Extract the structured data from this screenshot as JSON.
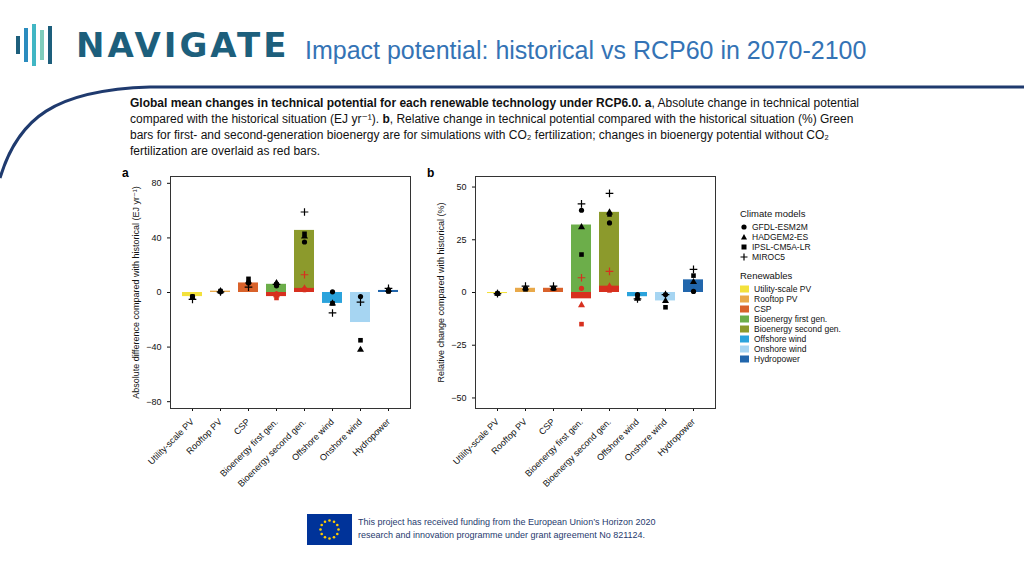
{
  "logo": "NAVIGATE",
  "title": "Impact potential: historical vs RCP60 in 2070-2100",
  "caption": [
    {
      "text": "Global mean changes in technical potential for each renewable technology under RCP6.0. ",
      "bold": true
    },
    {
      "text": "a",
      "bold": true
    },
    {
      "text": ", Absolute change in technical potential compared with the historical situation (EJ yr⁻¹). ",
      "bold": false
    },
    {
      "text": "b",
      "bold": true
    },
    {
      "text": ", Relative change in technical potential compared with the historical situation (%) ",
      "bold": false
    },
    {
      "text": "Green bars for first- and second-generation bioenergy are for simulations with CO₂ fertilization; changes in bioenergy potential without CO₂ fertilization are overlaid as red bars.",
      "bold": false
    }
  ],
  "footer": "This project has received funding from the European Union’s Horizon 2020 research and innovation programme under grant agreement No 821124.",
  "chart_data": [
    {
      "type": "bar",
      "panel": "a",
      "ylabel": "Absolute difference compared with historical (EJ yr⁻¹)",
      "categories": [
        "Utility-scale PV",
        "Rooftop PV",
        "CSP",
        "Bioenergy first gen.",
        "Bioenergy second gen.",
        "Offshore wind",
        "Onshore wind",
        "Hydropower"
      ],
      "values": [
        -3,
        1,
        7,
        6,
        45.5,
        -8,
        -22,
        1.5
      ],
      "colors": [
        "#f3e13c",
        "#e9a94a",
        "#d9622b",
        "#6cae4a",
        "#8c9a2c",
        "#2ba3dc",
        "#a6d5f2",
        "#2166ac"
      ],
      "no_co2_values": [
        null,
        null,
        null,
        -3,
        3,
        null,
        null,
        null
      ],
      "no_co2_color": "#d7301f",
      "ylim": [
        -85,
        85
      ],
      "yticks": [
        -80,
        -40,
        0,
        40,
        80
      ],
      "series": [
        {
          "name": "GFDL-ESM2M",
          "type": "scatter",
          "marker": "circle",
          "color": "#000000",
          "values": [
            -3,
            0.5,
            7,
            5,
            37,
            0.5,
            -3,
            1
          ],
          "no_co2_values": [
            null,
            null,
            null,
            -1,
            2,
            null,
            null,
            null
          ]
        },
        {
          "name": "HADGEM2-ES",
          "type": "scatter",
          "marker": "triangle",
          "color": "#000000",
          "values": [
            -4,
            1,
            8,
            7,
            41,
            -8,
            -42,
            2
          ],
          "no_co2_values": [
            null,
            null,
            null,
            -2,
            3,
            null,
            null,
            null
          ]
        },
        {
          "name": "IPSL-CM5A-LR",
          "type": "scatter",
          "marker": "square",
          "color": "#000000",
          "values": [
            -3,
            1,
            10,
            6,
            43,
            -8,
            -35,
            1
          ],
          "no_co2_values": [
            null,
            null,
            null,
            -4,
            2,
            null,
            null,
            null
          ]
        },
        {
          "name": "MIROC5",
          "type": "scatter",
          "marker": "plus",
          "color": "#000000",
          "values": [
            -5,
            0.5,
            4,
            6,
            59,
            -15,
            -7,
            3
          ],
          "no_co2_values": [
            null,
            null,
            null,
            -2,
            13,
            null,
            null,
            null
          ]
        }
      ]
    },
    {
      "type": "bar",
      "panel": "b",
      "ylabel": "Relative change compared with historical (%)",
      "categories": [
        "Utility-scale PV",
        "Rooftop PV",
        "CSP",
        "Bioenergy first gen.",
        "Bioenergy second gen.",
        "Offshore wind",
        "Onshore wind",
        "Hydropower"
      ],
      "values": [
        -0.5,
        2,
        2,
        32,
        38,
        -2,
        -4,
        6
      ],
      "colors": [
        "#f3e13c",
        "#e9a94a",
        "#d9622b",
        "#6cae4a",
        "#8c9a2c",
        "#2ba3dc",
        "#a6d5f2",
        "#2166ac"
      ],
      "no_co2_values": [
        null,
        null,
        null,
        -3,
        3,
        null,
        null,
        null
      ],
      "no_co2_color": "#d7301f",
      "ylim": [
        -55,
        55
      ],
      "yticks": [
        -50,
        -25,
        0,
        25,
        50
      ],
      "legend": "right",
      "models_legend_title": "Climate models",
      "bars_legend_title": "Renewables",
      "series": [
        {
          "name": "GFDL-ESM2M",
          "type": "scatter",
          "marker": "circle",
          "color": "#000000",
          "values": [
            -0.5,
            2,
            2,
            39,
            33,
            -1,
            -1,
            0.5
          ],
          "no_co2_values": [
            null,
            null,
            null,
            2,
            2,
            null,
            null,
            null
          ]
        },
        {
          "name": "HADGEM2-ES",
          "type": "scatter",
          "marker": "triangle",
          "color": "#000000",
          "values": [
            -0.5,
            2,
            2,
            31,
            38,
            -3,
            -4,
            5
          ],
          "no_co2_values": [
            null,
            null,
            null,
            -6,
            3,
            null,
            null,
            null
          ]
        },
        {
          "name": "IPSL-CM5A-LR",
          "type": "scatter",
          "marker": "square",
          "color": "#000000",
          "values": [
            -0.5,
            1.5,
            2,
            18,
            37,
            -2,
            -7,
            8
          ],
          "no_co2_values": [
            null,
            null,
            null,
            -15,
            1,
            null,
            null,
            null
          ]
        },
        {
          "name": "MIROC5",
          "type": "scatter",
          "marker": "plus",
          "color": "#000000",
          "values": [
            -0.5,
            3,
            3,
            42,
            47,
            -3,
            -1,
            11
          ],
          "no_co2_values": [
            null,
            null,
            null,
            7,
            10,
            null,
            null,
            null
          ]
        }
      ]
    }
  ]
}
